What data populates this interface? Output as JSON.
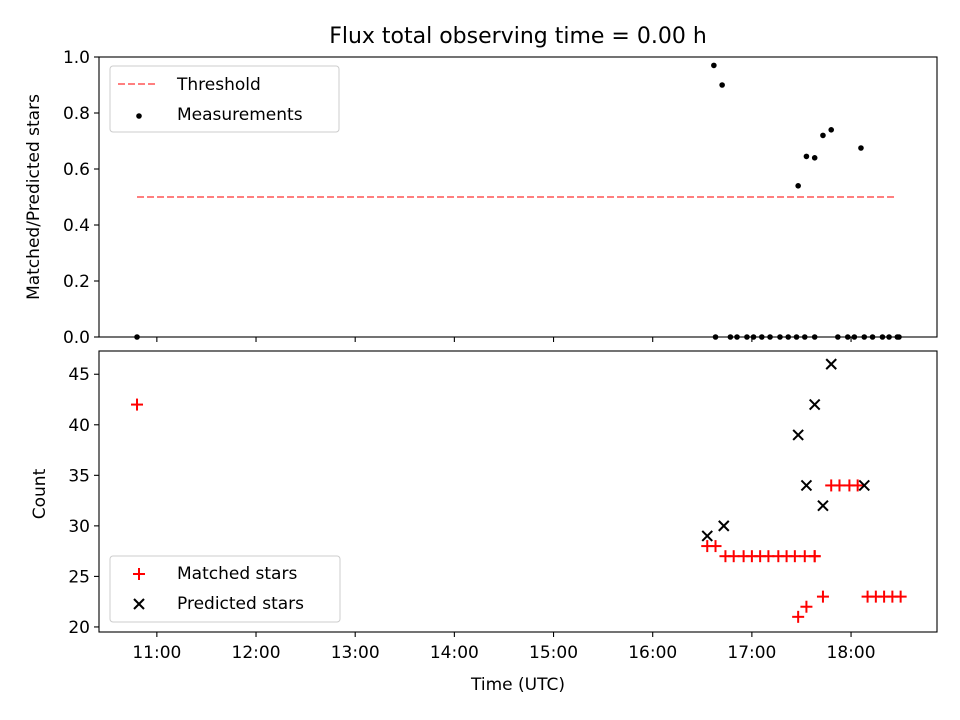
{
  "title": "Flux total observing time = 0.00 h",
  "xlabel": "Time (UTC)",
  "colors": {
    "threshold": "#ff7f7f",
    "matched": "#ff0000",
    "predicted": "#000000",
    "measurements": "#000000"
  },
  "x_ticks": [
    "11:00",
    "12:00",
    "13:00",
    "14:00",
    "15:00",
    "16:00",
    "17:00",
    "18:00"
  ],
  "chart_data": [
    {
      "type": "scatter",
      "ylabel": "Matched/Predicted stars",
      "xlim": [
        "10:25",
        "18:52"
      ],
      "ylim": [
        0,
        1.0
      ],
      "y_ticks": [
        "0.0",
        "0.2",
        "0.4",
        "0.6",
        "0.8",
        "1.0"
      ],
      "y_tick_values": [
        0,
        0.2,
        0.4,
        0.6,
        0.8,
        1.0
      ],
      "legend_position": "top-left",
      "threshold": {
        "name": "Threshold",
        "y": 0.5,
        "x_range": [
          "10:48",
          "18:26"
        ]
      },
      "series": [
        {
          "name": "Measurements",
          "x": [
            "10:48",
            "16:37",
            "16:38",
            "16:42",
            "16:47",
            "16:51",
            "16:57",
            "17:01",
            "17:06",
            "17:11",
            "17:17",
            "17:22",
            "17:27",
            "17:32",
            "17:38",
            "17:28",
            "17:33",
            "17:38",
            "17:43",
            "17:48",
            "17:52",
            "17:58",
            "18:02",
            "18:06",
            "18:08",
            "18:13",
            "18:19",
            "18:23",
            "18:28",
            "18:29"
          ],
          "y": [
            0,
            0.97,
            0,
            0.9,
            0,
            0,
            0,
            0,
            0,
            0,
            0,
            0,
            0,
            0,
            0,
            0.54,
            0.645,
            0.64,
            0.72,
            0.74,
            0,
            0,
            0,
            0.675,
            0,
            0,
            0,
            0,
            0,
            0
          ]
        }
      ]
    },
    {
      "type": "scatter",
      "ylabel": "Count",
      "xlim": [
        "10:25",
        "18:52"
      ],
      "ylim": [
        19.5,
        47.3
      ],
      "y_ticks": [
        "20",
        "25",
        "30",
        "35",
        "40",
        "45"
      ],
      "y_tick_values": [
        20,
        25,
        30,
        35,
        40,
        45
      ],
      "legend_position": "bottom-left",
      "series": [
        {
          "name": "Matched stars",
          "marker": "plus",
          "x": [
            "10:48",
            "16:33",
            "16:38",
            "16:44",
            "16:49",
            "16:55",
            "17:00",
            "17:05",
            "17:10",
            "17:16",
            "17:21",
            "17:26",
            "17:32",
            "17:38",
            "17:28",
            "17:33",
            "17:38",
            "17:43",
            "17:48",
            "17:53",
            "17:59",
            "18:04",
            "18:10",
            "18:15",
            "18:20",
            "18:25",
            "18:30"
          ],
          "y": [
            42,
            28,
            28,
            27,
            27,
            27,
            27,
            27,
            27,
            27,
            27,
            27,
            27,
            27,
            21,
            22,
            27,
            23,
            34,
            34,
            34,
            34,
            23,
            23,
            23,
            23,
            23
          ]
        },
        {
          "name": "Predicted stars",
          "marker": "x",
          "x": [
            "16:33",
            "16:43",
            "17:28",
            "17:33",
            "17:38",
            "17:43",
            "17:48",
            "18:08"
          ],
          "y": [
            29,
            30,
            39,
            34,
            42,
            32,
            46,
            34
          ]
        }
      ]
    }
  ]
}
